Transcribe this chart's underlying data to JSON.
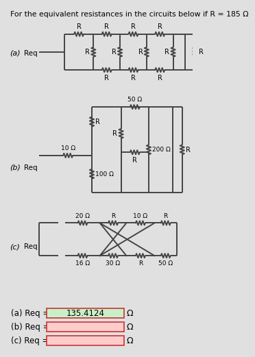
{
  "title": "For the equivalent resistances in the circuits below if R = 185 Ω",
  "bg_color": "#e0e0e0",
  "lc": "#444444",
  "lw": 1.4,
  "req_a": "135.4124",
  "req_b": "",
  "req_c": "",
  "omega": "Ω",
  "box_a_color": "#c8f0c8",
  "box_bc_color": "#ffcccc",
  "box_border": "#cc3333"
}
